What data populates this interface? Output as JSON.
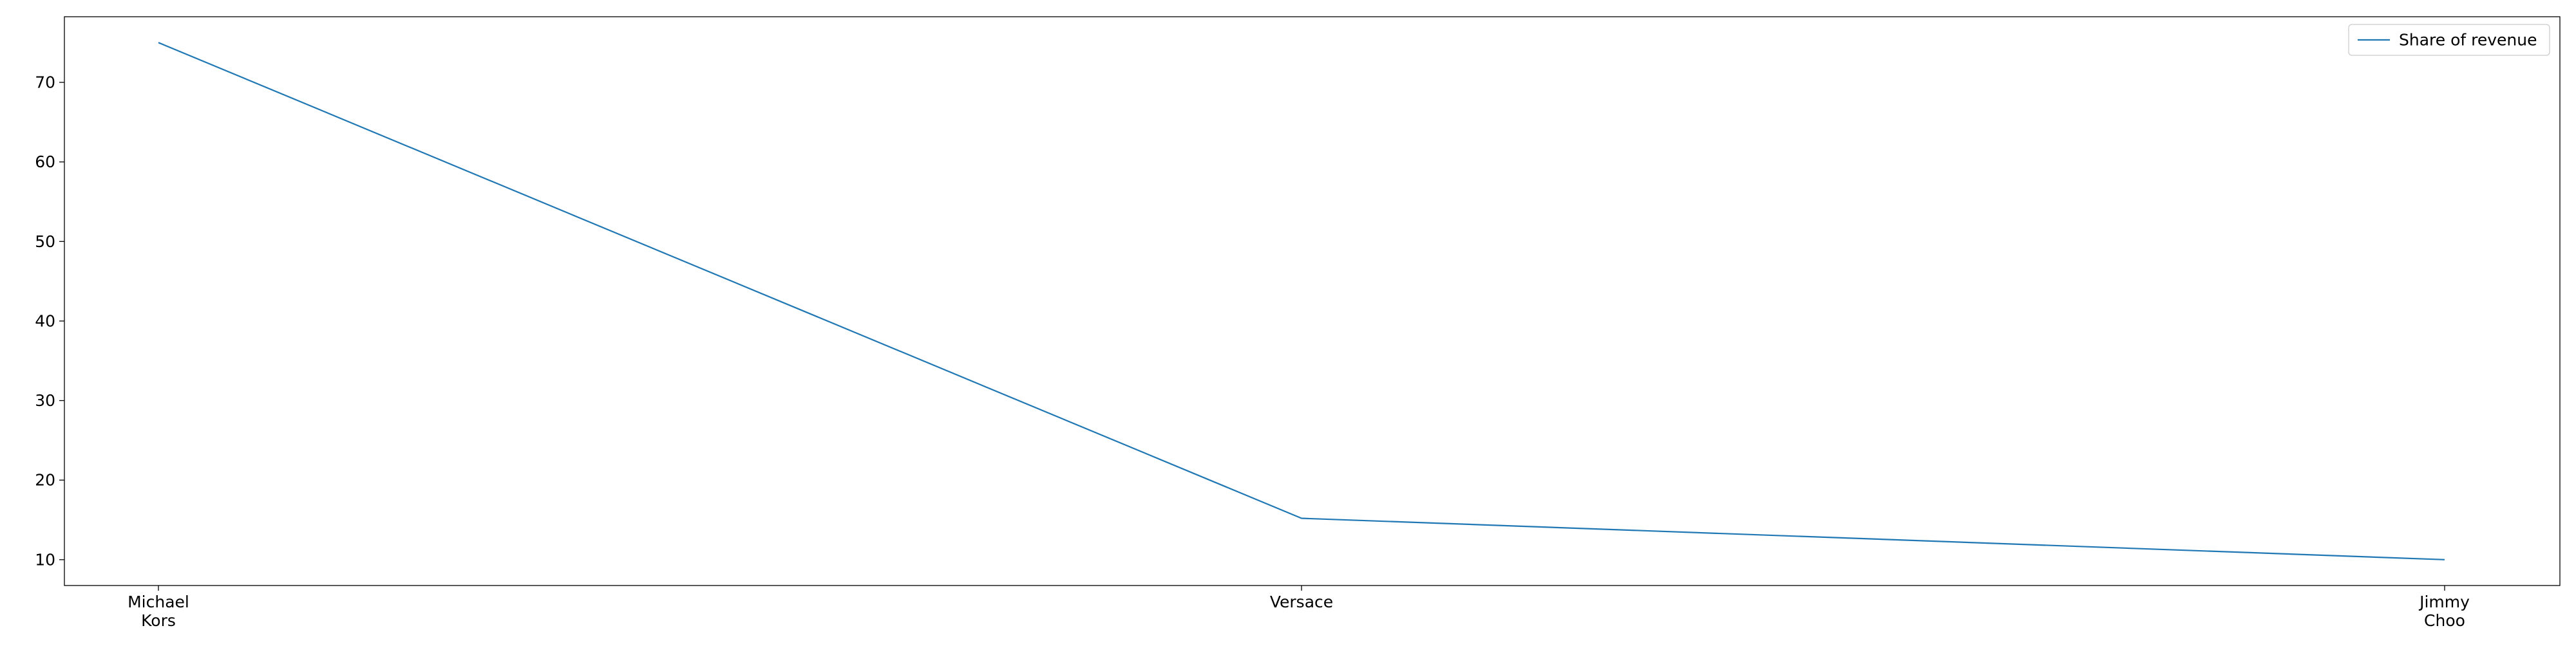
{
  "chart_data": {
    "type": "line",
    "categories": [
      [
        "Michael",
        "Kors"
      ],
      [
        "Versace"
      ],
      [
        "Jimmy",
        "Choo"
      ]
    ],
    "series": [
      {
        "name": "Share of revenue",
        "values": [
          75,
          15.2,
          10
        ],
        "color": "#1f77b4"
      }
    ],
    "yticks": [
      10,
      20,
      30,
      40,
      50,
      60,
      70
    ],
    "ylim": [
      6.75,
      78.25
    ],
    "grid": false,
    "legend_position": "upper right"
  }
}
